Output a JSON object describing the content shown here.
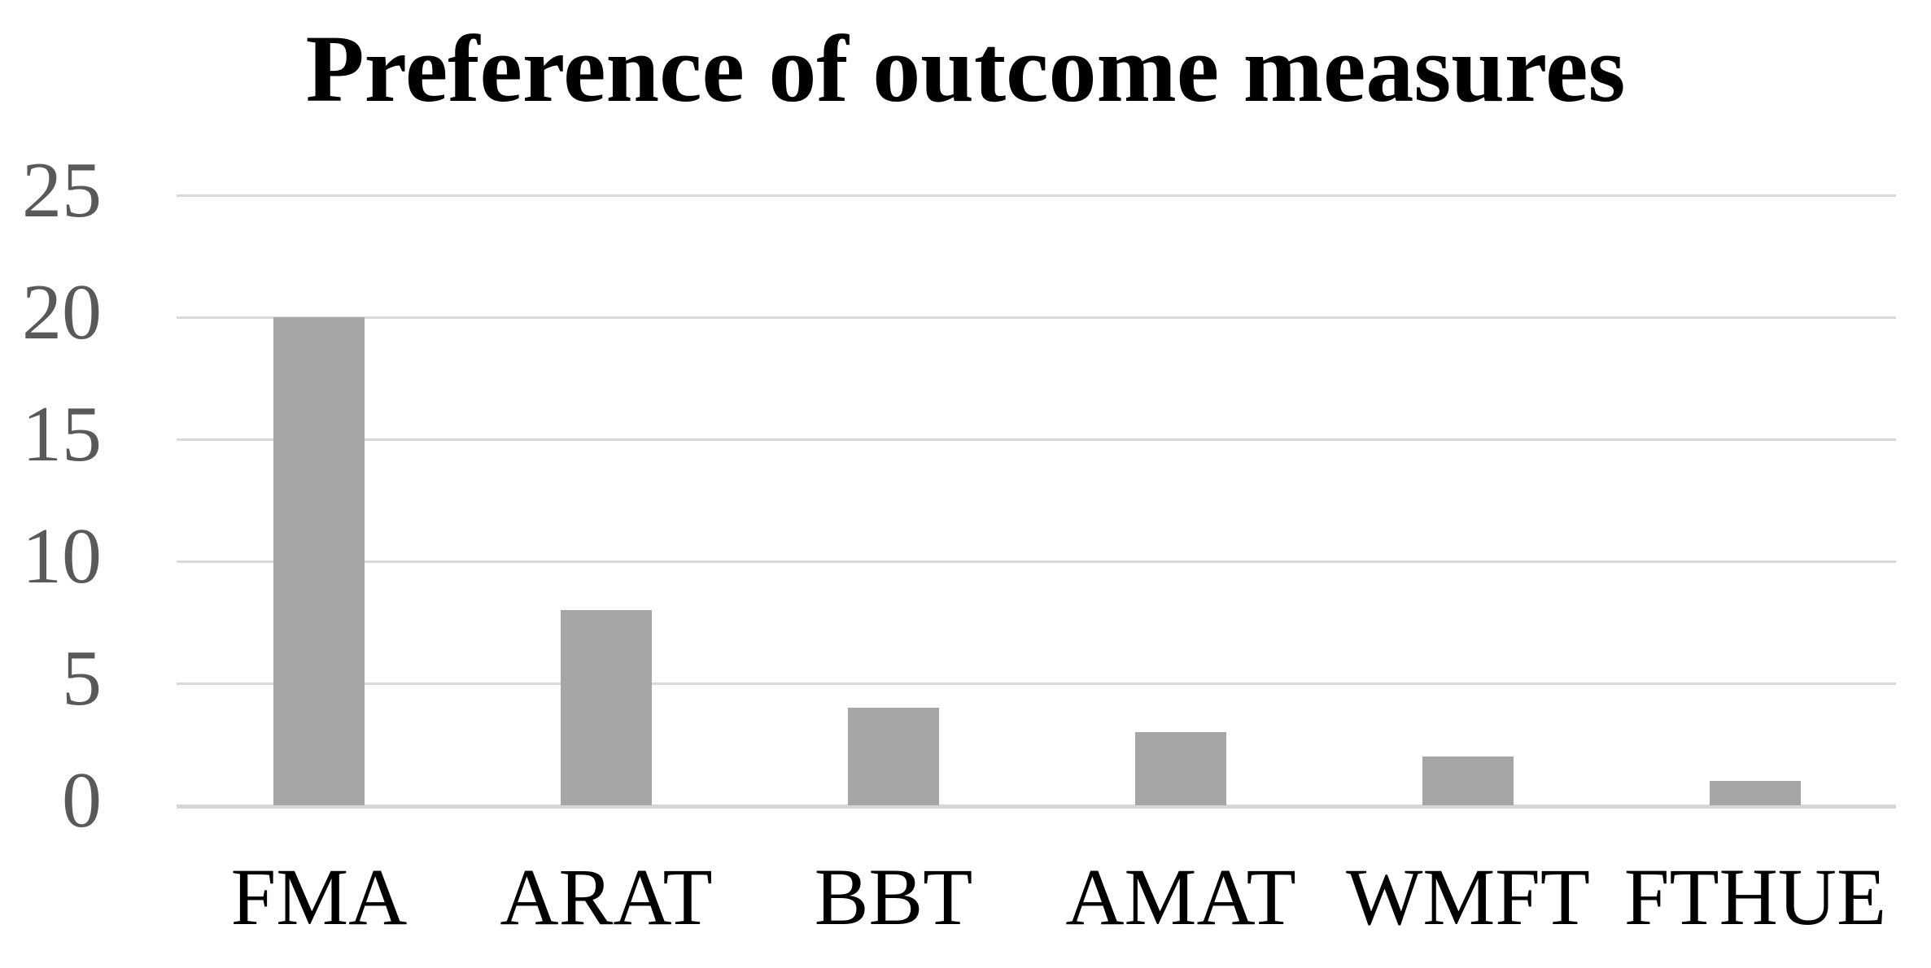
{
  "chart_data": {
    "type": "bar",
    "title": "Preference of outcome measures",
    "categories": [
      "FMA",
      "ARAT",
      "BBT",
      "AMAT",
      "WMFT",
      "FTHUE"
    ],
    "values": [
      20,
      8,
      4,
      3,
      2,
      1
    ],
    "xlabel": "",
    "ylabel": "",
    "ylim": [
      0,
      25
    ],
    "yticks": [
      0,
      5,
      10,
      15,
      20,
      25
    ],
    "grid": true,
    "legend": false,
    "bar_color": "#a6a6a6",
    "gridline_color": "#d9d9d9",
    "axis_line_color": "#d6d6d6",
    "ytick_label_color": "#595959",
    "xtick_label_color": "#000000",
    "title_color": "#000000"
  }
}
